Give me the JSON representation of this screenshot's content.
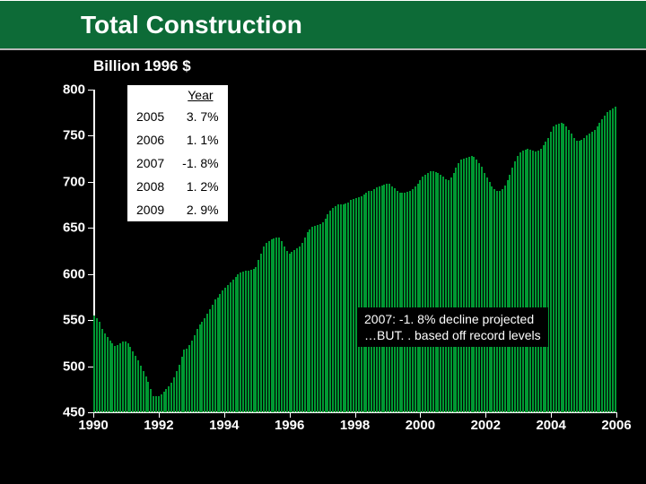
{
  "title": "Total Construction",
  "subtitle": "Billion 1996 $",
  "chart": {
    "type": "bar",
    "background_color": "#000000",
    "bar_color": "#009933",
    "axis_color": "#ffffff",
    "label_color": "#ffffff",
    "label_fontsize": 15,
    "ylim": [
      450,
      800
    ],
    "ytick_step": 50,
    "ylabels": [
      "800",
      "750",
      "700",
      "650",
      "600",
      "550",
      "500",
      "450"
    ],
    "xlim": [
      1990,
      2006
    ],
    "xlabels": [
      "1990",
      "1992",
      "1994",
      "1996",
      "1998",
      "2000",
      "2002",
      "2004",
      "2006"
    ],
    "bar_width_ratio": 0.7,
    "n_bars": 204,
    "values": [
      555,
      552,
      548,
      540,
      536,
      532,
      528,
      525,
      522,
      523,
      525,
      527,
      527,
      525,
      521,
      516,
      511,
      506,
      501,
      495,
      489,
      483,
      475,
      468,
      468,
      468,
      469,
      472,
      475,
      478,
      482,
      488,
      495,
      502,
      510,
      518,
      519,
      523,
      528,
      534,
      540,
      545,
      548,
      552,
      557,
      562,
      567,
      573,
      574,
      578,
      582,
      585,
      588,
      591,
      594,
      597,
      600,
      602,
      603,
      604,
      604,
      605,
      606,
      608,
      615,
      622,
      630,
      634,
      636,
      638,
      639,
      640,
      640,
      636,
      630,
      625,
      622,
      624,
      626,
      628,
      630,
      634,
      640,
      645,
      648,
      651,
      652,
      653,
      654,
      656,
      660,
      665,
      669,
      672,
      674,
      676,
      676,
      676,
      677,
      678,
      680,
      681,
      682,
      683,
      684,
      686,
      688,
      690,
      690,
      692,
      694,
      695,
      696,
      697,
      698,
      698,
      695,
      693,
      690,
      688,
      688,
      688,
      689,
      690,
      692,
      695,
      698,
      702,
      706,
      708,
      710,
      712,
      712,
      711,
      710,
      708,
      706,
      703,
      702,
      705,
      710,
      715,
      720,
      724,
      725,
      726,
      727,
      728,
      727,
      724,
      720,
      716,
      710,
      705,
      700,
      695,
      692,
      690,
      690,
      692,
      696,
      702,
      708,
      715,
      722,
      728,
      732,
      734,
      735,
      736,
      735,
      734,
      733,
      734,
      736,
      740,
      744,
      748,
      754,
      760,
      762,
      763,
      764,
      763,
      760,
      756,
      752,
      748,
      745,
      745,
      746,
      748,
      750,
      752,
      754,
      756,
      760,
      764,
      768,
      772,
      776,
      778,
      780,
      782
    ]
  },
  "year_table": {
    "header": "Year",
    "rows": [
      {
        "year": "2005",
        "pct": "3. 7%"
      },
      {
        "year": "2006",
        "pct": "1. 1%"
      },
      {
        "year": "2007",
        "pct": "-1. 8%"
      },
      {
        "year": "2008",
        "pct": "1. 2%"
      },
      {
        "year": "2009",
        "pct": "2. 9%"
      }
    ]
  },
  "note": {
    "line1": "2007: -1. 8% decline projected",
    "line2": "…BUT. . based off record levels"
  }
}
